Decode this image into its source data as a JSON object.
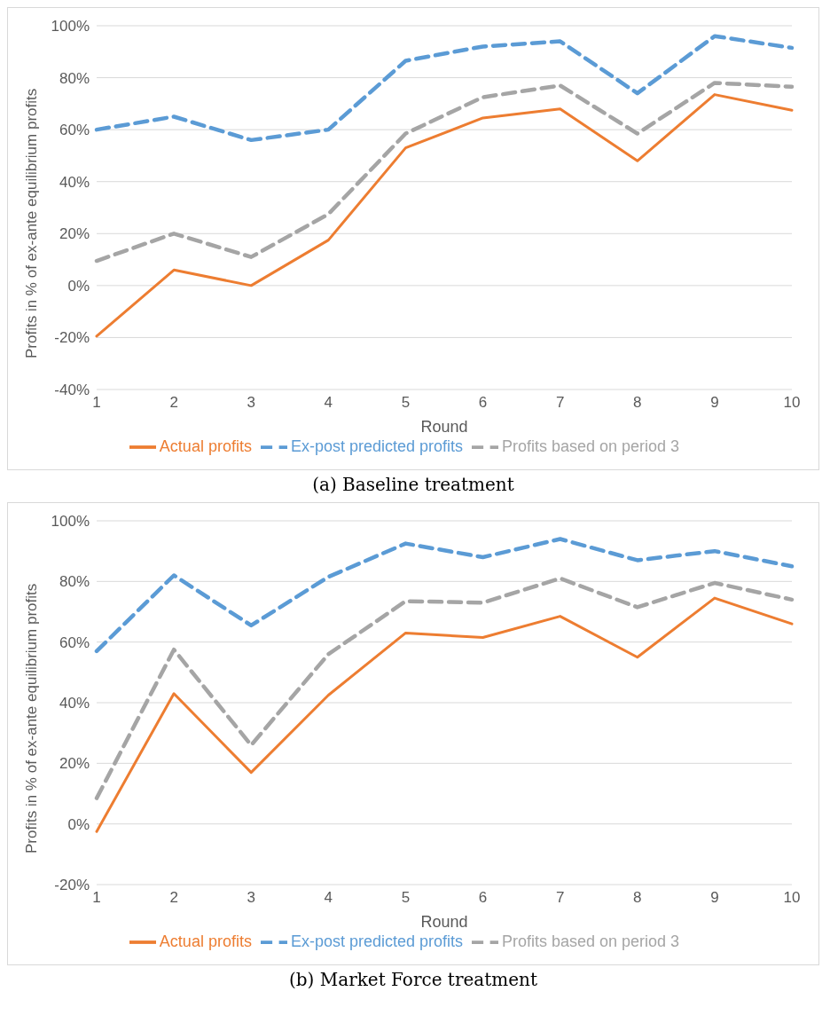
{
  "chart_data": [
    {
      "type": "line",
      "xlabel": "Round",
      "ylabel": "Profits in % of ex-ante equilibrium profits",
      "annotations": [
        "(a) Baseline treatment"
      ],
      "categories": [
        "1",
        "2",
        "3",
        "4",
        "5",
        "6",
        "7",
        "8",
        "9",
        "10"
      ],
      "series": [
        {
          "name": "Ex-post predicted profits",
          "color": "#5b9bd5",
          "line_style": "dashed",
          "values": [
            60,
            65,
            56,
            60,
            86.5,
            92,
            94,
            74,
            96,
            91.5
          ]
        },
        {
          "name": "Actual profits",
          "color": "#ed7d31",
          "line_style": "solid",
          "values": [
            -19.5,
            6,
            0,
            17.5,
            53,
            64.5,
            68,
            48,
            73.5,
            67.5
          ]
        },
        {
          "name": "Profits based on period 3",
          "color": "#a5a5a5",
          "line_style": "dashed",
          "values": [
            9.5,
            20,
            11,
            27.5,
            58.5,
            72.5,
            77,
            58.5,
            78,
            76.5
          ]
        }
      ],
      "ylim": [
        -40,
        100
      ],
      "yticks": [
        {
          "value": -40,
          "label": "-40%"
        },
        {
          "value": -20,
          "label": "-20%"
        },
        {
          "value": 0,
          "label": "0%"
        },
        {
          "value": 20,
          "label": "20%"
        },
        {
          "value": 40,
          "label": "40%"
        },
        {
          "value": 60,
          "label": "60%"
        },
        {
          "value": 80,
          "label": "80%"
        },
        {
          "value": 100,
          "label": "100%"
        }
      ],
      "grid": "y",
      "legend": "bottom",
      "marker": "none"
    },
    {
      "type": "line",
      "xlabel": "Round",
      "ylabel": "Profits in % of ex-ante equilibrium profits",
      "annotations": [
        "(b) Market Force treatment"
      ],
      "categories": [
        "1",
        "2",
        "3",
        "4",
        "5",
        "6",
        "7",
        "8",
        "9",
        "10"
      ],
      "series": [
        {
          "name": "Ex-post predicted profits",
          "color": "#5b9bd5",
          "line_style": "dashed",
          "values": [
            57,
            82,
            65.5,
            81.5,
            92.5,
            88,
            94,
            87,
            90,
            85
          ]
        },
        {
          "name": "Actual profits",
          "color": "#ed7d31",
          "line_style": "solid",
          "values": [
            -2.5,
            43,
            17,
            42.5,
            63,
            61.5,
            68.5,
            55,
            74.5,
            66
          ]
        },
        {
          "name": "Profits based on period 3",
          "color": "#a5a5a5",
          "line_style": "dashed",
          "values": [
            8.5,
            57.5,
            26,
            56,
            73.5,
            73,
            81,
            71.5,
            79.5,
            74
          ]
        }
      ],
      "ylim": [
        -20,
        100
      ],
      "yticks": [
        {
          "value": -20,
          "label": "-20%"
        },
        {
          "value": 0,
          "label": "0%"
        },
        {
          "value": 20,
          "label": "20%"
        },
        {
          "value": 40,
          "label": "40%"
        },
        {
          "value": 60,
          "label": "60%"
        },
        {
          "value": 80,
          "label": "80%"
        },
        {
          "value": 100,
          "label": "100%"
        }
      ],
      "grid": "y",
      "legend": "bottom",
      "marker": "none"
    }
  ]
}
